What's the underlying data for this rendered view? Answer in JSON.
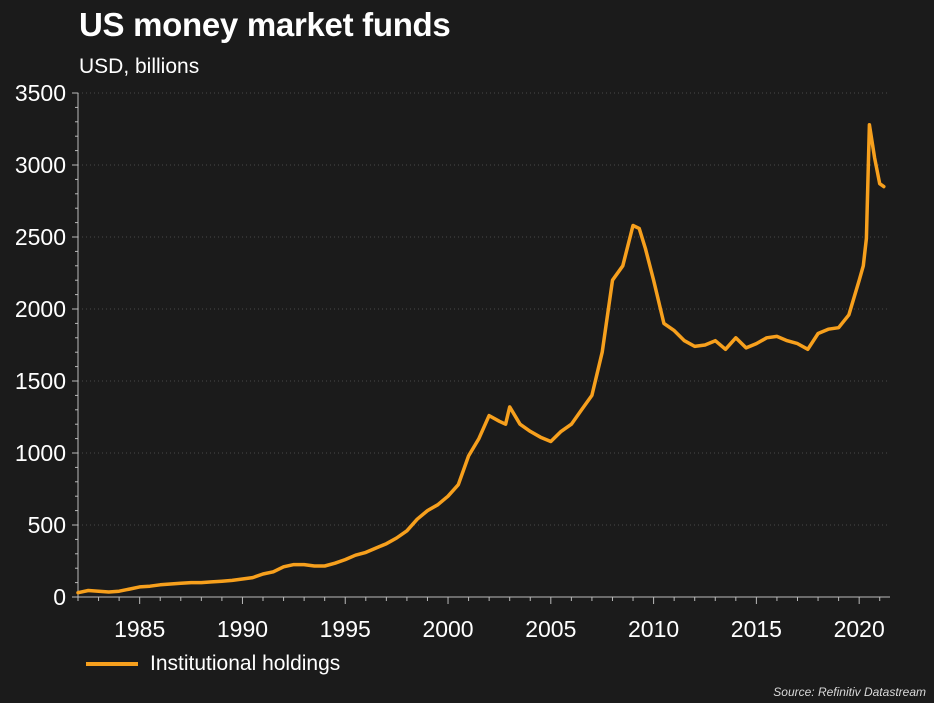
{
  "title": "US money market funds",
  "subtitle": "USD, billions",
  "source": "Source: Refinitiv Datastream",
  "colors": {
    "background": "#1b1b1b",
    "line": "#f7a01d",
    "text": "#ffffff",
    "grid": "#4a4a4a"
  },
  "chart_data": {
    "type": "line",
    "title": "US money market funds",
    "subtitle": "USD, billions",
    "xlabel": "",
    "ylabel": "",
    "xlim": [
      1982,
      2021.5
    ],
    "ylim": [
      0,
      3500
    ],
    "x_ticks": [
      "1985",
      "1990",
      "1995",
      "2000",
      "2005",
      "2010",
      "2015",
      "2020"
    ],
    "y_ticks": [
      "0",
      "500",
      "1000",
      "1500",
      "2000",
      "2500",
      "3000",
      "3500"
    ],
    "grid": true,
    "legend_position": "bottom-left",
    "series": [
      {
        "name": "Institutional holdings",
        "color": "#f7a01d",
        "x": [
          1982.0,
          1982.5,
          1983.0,
          1983.5,
          1984.0,
          1984.5,
          1985.0,
          1985.5,
          1986.0,
          1986.5,
          1987.0,
          1987.5,
          1988.0,
          1988.5,
          1989.0,
          1989.5,
          1990.0,
          1990.5,
          1991.0,
          1991.5,
          1992.0,
          1992.5,
          1993.0,
          1993.5,
          1994.0,
          1994.5,
          1995.0,
          1995.5,
          1996.0,
          1996.5,
          1997.0,
          1997.5,
          1998.0,
          1998.5,
          1999.0,
          1999.5,
          2000.0,
          2000.5,
          2001.0,
          2001.5,
          2002.0,
          2002.5,
          2002.8,
          2003.0,
          2003.5,
          2004.0,
          2004.5,
          2005.0,
          2005.5,
          2006.0,
          2006.5,
          2007.0,
          2007.5,
          2008.0,
          2008.5,
          2009.0,
          2009.3,
          2009.6,
          2010.0,
          2010.5,
          2011.0,
          2011.5,
          2012.0,
          2012.5,
          2013.0,
          2013.5,
          2014.0,
          2014.5,
          2015.0,
          2015.5,
          2016.0,
          2016.5,
          2017.0,
          2017.5,
          2018.0,
          2018.5,
          2019.0,
          2019.5,
          2020.0,
          2020.2,
          2020.35,
          2020.5,
          2020.75,
          2021.0,
          2021.2
        ],
        "values": [
          30,
          45,
          40,
          35,
          40,
          55,
          70,
          75,
          85,
          90,
          95,
          100,
          100,
          105,
          110,
          115,
          125,
          135,
          160,
          175,
          210,
          225,
          225,
          215,
          215,
          235,
          260,
          290,
          310,
          340,
          370,
          410,
          460,
          540,
          600,
          640,
          700,
          780,
          980,
          1100,
          1260,
          1220,
          1200,
          1320,
          1200,
          1150,
          1110,
          1080,
          1150,
          1200,
          1300,
          1400,
          1700,
          2200,
          2300,
          2580,
          2560,
          2420,
          2200,
          1900,
          1850,
          1780,
          1740,
          1750,
          1780,
          1720,
          1800,
          1730,
          1760,
          1800,
          1810,
          1780,
          1760,
          1720,
          1830,
          1860,
          1870,
          1960,
          2200,
          2300,
          2490,
          3280,
          3050,
          2870,
          2850
        ]
      }
    ]
  }
}
